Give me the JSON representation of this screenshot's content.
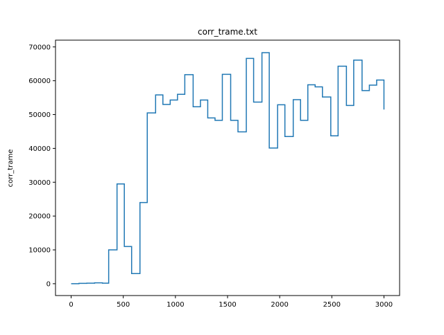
{
  "chart_data": {
    "type": "line",
    "step": true,
    "title": "corr_trame.txt",
    "xlabel": "",
    "ylabel": "corr_trame",
    "xlim": [
      -150,
      3150
    ],
    "ylim": [
      -3500,
      72000
    ],
    "xticks": [
      0,
      500,
      1000,
      1500,
      2000,
      2500,
      3000
    ],
    "yticks": [
      0,
      10000,
      20000,
      30000,
      40000,
      50000,
      60000,
      70000
    ],
    "grid": false,
    "line_color": "#1f77b4",
    "series": [
      {
        "x": [
          0,
          75,
          75,
          150,
          150,
          225,
          225,
          300,
          300,
          360,
          360,
          440,
          440,
          510,
          510,
          580,
          580,
          660,
          660,
          730,
          730,
          810,
          810,
          880,
          880,
          950,
          950,
          1020,
          1020,
          1090,
          1090,
          1170,
          1170,
          1240,
          1240,
          1310,
          1310,
          1380,
          1380,
          1450,
          1450,
          1530,
          1530,
          1600,
          1600,
          1680,
          1680,
          1750,
          1750,
          1830,
          1830,
          1900,
          1900,
          1980,
          1980,
          2050,
          2050,
          2130,
          2130,
          2200,
          2200,
          2270,
          2270,
          2340,
          2340,
          2410,
          2410,
          2490,
          2490,
          2560,
          2560,
          2640,
          2640,
          2710,
          2710,
          2790,
          2790,
          2860,
          2860,
          2930,
          2930,
          3000,
          3000
        ],
        "y": [
          0,
          0,
          100,
          100,
          150,
          150,
          250,
          250,
          150,
          150,
          10000,
          10000,
          29500,
          29500,
          11000,
          11000,
          3000,
          3000,
          24000,
          24000,
          50500,
          50500,
          55800,
          55800,
          53000,
          53000,
          54300,
          54300,
          56000,
          56000,
          61800,
          61800,
          52300,
          52300,
          54300,
          54300,
          49000,
          49000,
          48300,
          48300,
          61900,
          61900,
          48300,
          48300,
          44900,
          44900,
          66600,
          66600,
          53700,
          53700,
          68300,
          68300,
          40100,
          40100,
          52900,
          52900,
          43500,
          43500,
          54400,
          54400,
          48300,
          48300,
          58800,
          58800,
          58200,
          58200,
          55200,
          55200,
          43700,
          43700,
          64300,
          64300,
          52700,
          52700,
          66100,
          66100,
          57100,
          57100,
          58700,
          58700,
          60200,
          60200,
          51500
        ]
      }
    ]
  }
}
